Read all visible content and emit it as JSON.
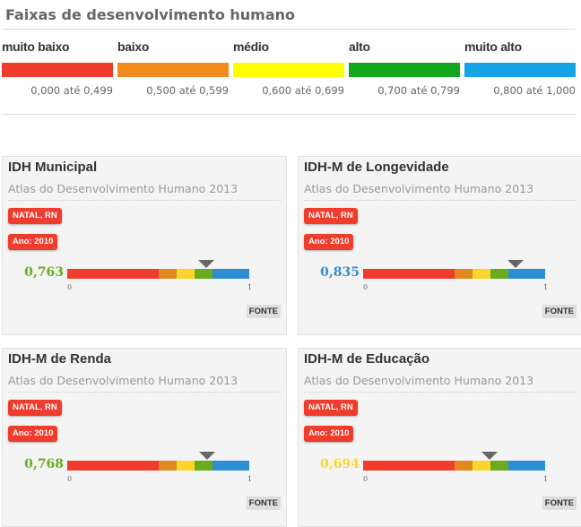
{
  "legend": {
    "title": "Faixas de desenvolvimento humano",
    "bands": [
      {
        "name": "muito baixo",
        "range": "0,000 até 0,499",
        "color": "#f03c2d"
      },
      {
        "name": "baixo",
        "range": "0,500 até 0,599",
        "color": "#f18a1f"
      },
      {
        "name": "médio",
        "range": "0,600 até 0,699",
        "color": "#ffff00"
      },
      {
        "name": "alto",
        "range": "0,700 até 0,799",
        "color": "#12a71f"
      },
      {
        "name": "muito alto",
        "range": "0,800 até 1,000",
        "color": "#16a3e4"
      }
    ]
  },
  "gauge_colors": [
    "#f03c2d",
    "#e08a1f",
    "#fdd52a",
    "#6aaa1f",
    "#2e8ed4"
  ],
  "cards": [
    {
      "title": "IDH Municipal",
      "subtitle": "Atlas do Desenvolvimento Humano 2013",
      "location": "NATAL, RN",
      "year": "Ano: 2010",
      "value": "0,763",
      "fraction": 0.763,
      "value_color": "#6aaa1f",
      "min_label": "0",
      "max_label": "1",
      "source": "FONTE"
    },
    {
      "title": "IDH-M de Longevidade",
      "subtitle": "Atlas do Desenvolvimento Humano 2013",
      "location": "NATAL, RN",
      "year": "Ano: 2010",
      "value": "0,835",
      "fraction": 0.835,
      "value_color": "#2e8ed4",
      "min_label": "0",
      "max_label": "1",
      "source": "FONTE"
    },
    {
      "title": "IDH-M de Renda",
      "subtitle": "Atlas do Desenvolvimento Humano 2013",
      "location": "NATAL, RN",
      "year": "Ano: 2010",
      "value": "0,768",
      "fraction": 0.768,
      "value_color": "#6aaa1f",
      "min_label": "0",
      "max_label": "1",
      "source": "FONTE"
    },
    {
      "title": "IDH-M de Educação",
      "subtitle": "Atlas do Desenvolvimento Humano 2013",
      "location": "NATAL, RN",
      "year": "Ano: 2010",
      "value": "0,694",
      "fraction": 0.694,
      "value_color": "#fdd52a",
      "min_label": "0",
      "max_label": "1",
      "source": "FONTE"
    }
  ]
}
